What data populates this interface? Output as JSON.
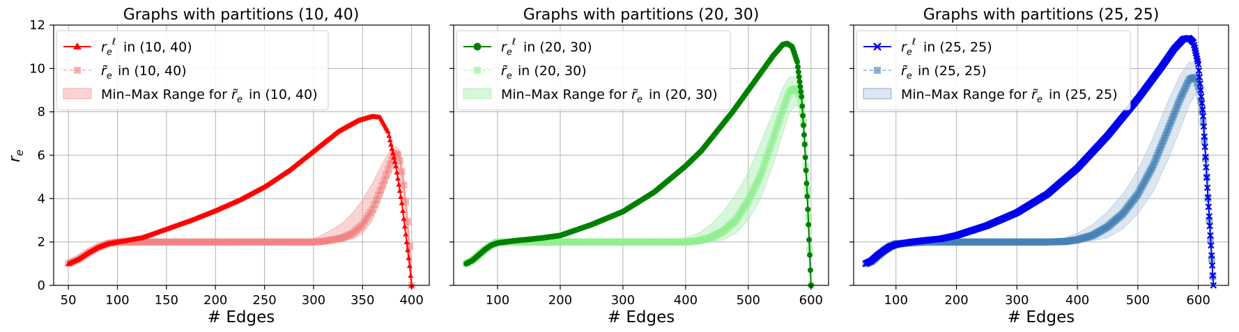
{
  "ylabel": "r_e",
  "chart_data": [
    {
      "type": "line",
      "title": "Graphs with partitions (10, 40)",
      "xlabel": "# Edges",
      "ylabel": "r_e",
      "xlim": [
        35,
        418
      ],
      "ylim": [
        0,
        12
      ],
      "xticks": [
        50,
        100,
        150,
        200,
        250,
        300,
        350,
        400
      ],
      "yticks": [
        0,
        2,
        4,
        6,
        8,
        10,
        12
      ],
      "grid": true,
      "legend_position": "top-left",
      "color_main": "#ff0000",
      "color_soft": "#f08080",
      "color_band": "#f4a0a0",
      "marker": "triangle",
      "legend": [
        "in (10, 40)",
        "in (10, 40)",
        "Min–Max Range for",
        "in (10, 40)"
      ],
      "series": [
        {
          "name": "r_e^ℓ in (10, 40)",
          "x": [
            50,
            60,
            70,
            80,
            90,
            100,
            125,
            150,
            175,
            200,
            225,
            250,
            275,
            300,
            325,
            345,
            360,
            368,
            376,
            384,
            390,
            395,
            398,
            400
          ],
          "y": [
            1.0,
            1.2,
            1.5,
            1.75,
            1.92,
            2.0,
            2.2,
            2.6,
            3.0,
            3.45,
            3.95,
            4.55,
            5.3,
            6.2,
            7.1,
            7.6,
            7.8,
            7.75,
            7.1,
            5.5,
            3.8,
            2.0,
            0.9,
            0.0
          ]
        },
        {
          "name": "r̃_e in (10, 40)",
          "x": [
            50,
            60,
            70,
            80,
            90,
            100,
            150,
            200,
            250,
            300,
            310,
            320,
            330,
            340,
            350,
            360,
            370,
            378,
            383,
            387,
            391,
            395,
            398,
            400
          ],
          "y": [
            1.0,
            1.2,
            1.5,
            1.75,
            1.92,
            2.0,
            2.0,
            2.0,
            2.0,
            2.0,
            2.03,
            2.1,
            2.2,
            2.4,
            2.8,
            3.5,
            4.6,
            5.6,
            6.1,
            6.0,
            5.0,
            3.5,
            1.8,
            0.0
          ]
        },
        {
          "name": "Min–Max Range for r̃_e in (10, 40)",
          "x": [
            50,
            60,
            70,
            80,
            90,
            100,
            150,
            200,
            250,
            290,
            300,
            310,
            320,
            330,
            340,
            350,
            360,
            370,
            378,
            384,
            388,
            392,
            396,
            400
          ],
          "low": [
            1.0,
            1.15,
            1.4,
            1.65,
            1.88,
            2.0,
            2.0,
            2.0,
            2.0,
            2.0,
            2.0,
            2.0,
            2.0,
            2.05,
            2.15,
            2.4,
            3.0,
            4.1,
            5.1,
            5.6,
            5.2,
            4.0,
            2.2,
            0.0
          ],
          "high": [
            1.05,
            1.3,
            1.6,
            1.85,
            1.97,
            2.0,
            2.0,
            2.0,
            2.0,
            2.05,
            2.15,
            2.35,
            2.6,
            2.9,
            3.35,
            3.95,
            4.7,
            5.6,
            6.2,
            6.4,
            6.2,
            5.0,
            3.0,
            0.0
          ]
        }
      ]
    },
    {
      "type": "line",
      "title": "Graphs with partitions (20, 30)",
      "xlabel": "# Edges",
      "xlim": [
        30,
        628
      ],
      "ylim": [
        0,
        12
      ],
      "xticks": [
        100,
        200,
        300,
        400,
        500,
        600
      ],
      "yticks": [
        0,
        2,
        4,
        6,
        8,
        10,
        12
      ],
      "grid": true,
      "legend_position": "top-left",
      "color_main": "#008000",
      "color_soft": "#90ee90",
      "color_band": "#a8ecb0",
      "marker": "circle",
      "legend": [
        "in (20, 30)",
        "in (20, 30)",
        "Min–Max Range for",
        "in (20, 30)"
      ],
      "series": [
        {
          "name": "r_e^ℓ in (20, 30)",
          "x": [
            50,
            60,
            70,
            80,
            90,
            100,
            125,
            150,
            175,
            200,
            250,
            300,
            350,
            400,
            425,
            450,
            475,
            500,
            520,
            540,
            555,
            562,
            570,
            578,
            585,
            590,
            595,
            600
          ],
          "y": [
            1.0,
            1.15,
            1.4,
            1.65,
            1.85,
            1.95,
            2.05,
            2.12,
            2.2,
            2.3,
            2.8,
            3.4,
            4.3,
            5.5,
            6.2,
            7.1,
            8.0,
            9.0,
            9.8,
            10.6,
            11.1,
            11.15,
            11.0,
            10.3,
            8.7,
            6.5,
            3.5,
            0.0
          ]
        },
        {
          "name": "r̃_e in (20, 30)",
          "x": [
            50,
            60,
            70,
            80,
            90,
            100,
            200,
            300,
            400,
            420,
            440,
            460,
            480,
            500,
            520,
            540,
            555,
            565,
            575,
            583,
            588,
            593,
            597,
            600
          ],
          "y": [
            1.0,
            1.15,
            1.4,
            1.65,
            1.85,
            2.0,
            2.0,
            2.0,
            2.0,
            2.05,
            2.2,
            2.5,
            3.0,
            3.9,
            5.1,
            6.8,
            8.1,
            8.9,
            9.1,
            8.7,
            7.5,
            5.0,
            2.5,
            0.0
          ]
        },
        {
          "name": "Min–Max Range for r̃_e in (20, 30)",
          "x": [
            50,
            60,
            70,
            80,
            90,
            100,
            200,
            300,
            380,
            400,
            420,
            440,
            460,
            480,
            500,
            520,
            540,
            555,
            565,
            575,
            583,
            590,
            596,
            600
          ],
          "low": [
            1.0,
            1.05,
            1.2,
            1.45,
            1.7,
            1.9,
            2.0,
            2.0,
            2.0,
            2.0,
            2.0,
            2.0,
            2.1,
            2.4,
            3.0,
            4.0,
            5.6,
            7.0,
            7.9,
            8.3,
            8.1,
            6.5,
            3.5,
            0.0
          ],
          "high": [
            1.05,
            1.3,
            1.6,
            1.8,
            1.95,
            2.05,
            2.05,
            2.05,
            2.1,
            2.2,
            2.4,
            2.8,
            3.4,
            4.2,
            5.2,
            6.6,
            8.0,
            9.1,
            9.6,
            9.6,
            9.3,
            7.8,
            4.5,
            0.0
          ]
        }
      ]
    },
    {
      "type": "line",
      "title": "Graphs with partitions (25, 25)",
      "xlabel": "# Edges",
      "xlim": [
        30,
        650
      ],
      "ylim": [
        0,
        12
      ],
      "xticks": [
        100,
        200,
        300,
        400,
        500,
        600
      ],
      "yticks": [
        0,
        2,
        4,
        6,
        8,
        10,
        12
      ],
      "grid": true,
      "legend_position": "top-left",
      "color_main": "#0000ee",
      "color_soft": "#4682b4",
      "color_band": "#b0c8e0",
      "marker": "x",
      "legend": [
        "in (25, 25)",
        "in (25, 25)",
        "Min–Max Range for",
        "in (25, 25)"
      ],
      "series": [
        {
          "name": "r_e^ℓ in (25, 25)",
          "x": [
            50,
            60,
            70,
            80,
            90,
            100,
            125,
            150,
            175,
            200,
            250,
            300,
            350,
            400,
            450,
            500,
            540,
            560,
            575,
            585,
            592,
            600,
            608,
            615,
            620,
            625
          ],
          "y": [
            1.0,
            1.15,
            1.4,
            1.6,
            1.78,
            1.88,
            2.0,
            2.08,
            2.15,
            2.3,
            2.75,
            3.35,
            4.2,
            5.4,
            6.9,
            8.6,
            10.1,
            10.9,
            11.35,
            11.4,
            11.2,
            10.2,
            7.8,
            4.5,
            2.3,
            0.0
          ]
        },
        {
          "name": "r̃_e in (25, 25)",
          "x": [
            50,
            60,
            70,
            80,
            90,
            100,
            150,
            200,
            250,
            300,
            350,
            380,
            400,
            425,
            450,
            475,
            500,
            525,
            550,
            570,
            585,
            595,
            602,
            608,
            614,
            619,
            623,
            625
          ],
          "y": [
            1.0,
            1.1,
            1.35,
            1.6,
            1.8,
            1.92,
            2.0,
            2.0,
            2.0,
            2.0,
            2.0,
            2.02,
            2.1,
            2.3,
            2.7,
            3.3,
            4.2,
            5.5,
            7.2,
            8.6,
            9.5,
            9.6,
            9.0,
            7.5,
            5.0,
            2.5,
            0.8,
            0.0
          ]
        },
        {
          "name": "Min–Max Range for r̃_e in (25, 25)",
          "x": [
            50,
            60,
            70,
            80,
            90,
            100,
            150,
            200,
            250,
            300,
            350,
            380,
            400,
            425,
            450,
            475,
            500,
            525,
            550,
            570,
            585,
            595,
            603,
            610,
            617,
            625
          ],
          "low": [
            1.0,
            1.05,
            1.15,
            1.35,
            1.55,
            1.7,
            1.95,
            2.0,
            2.0,
            2.0,
            2.0,
            2.0,
            2.0,
            2.05,
            2.2,
            2.6,
            3.3,
            4.3,
            5.8,
            7.2,
            8.3,
            8.8,
            8.3,
            6.5,
            3.5,
            0.0
          ],
          "high": [
            1.05,
            1.3,
            1.6,
            1.85,
            2.0,
            2.05,
            2.05,
            2.05,
            2.05,
            2.05,
            2.1,
            2.2,
            2.4,
            2.8,
            3.4,
            4.2,
            5.3,
            6.8,
            8.5,
            9.7,
            10.3,
            10.3,
            9.7,
            8.0,
            4.8,
            0.0
          ]
        }
      ]
    }
  ]
}
